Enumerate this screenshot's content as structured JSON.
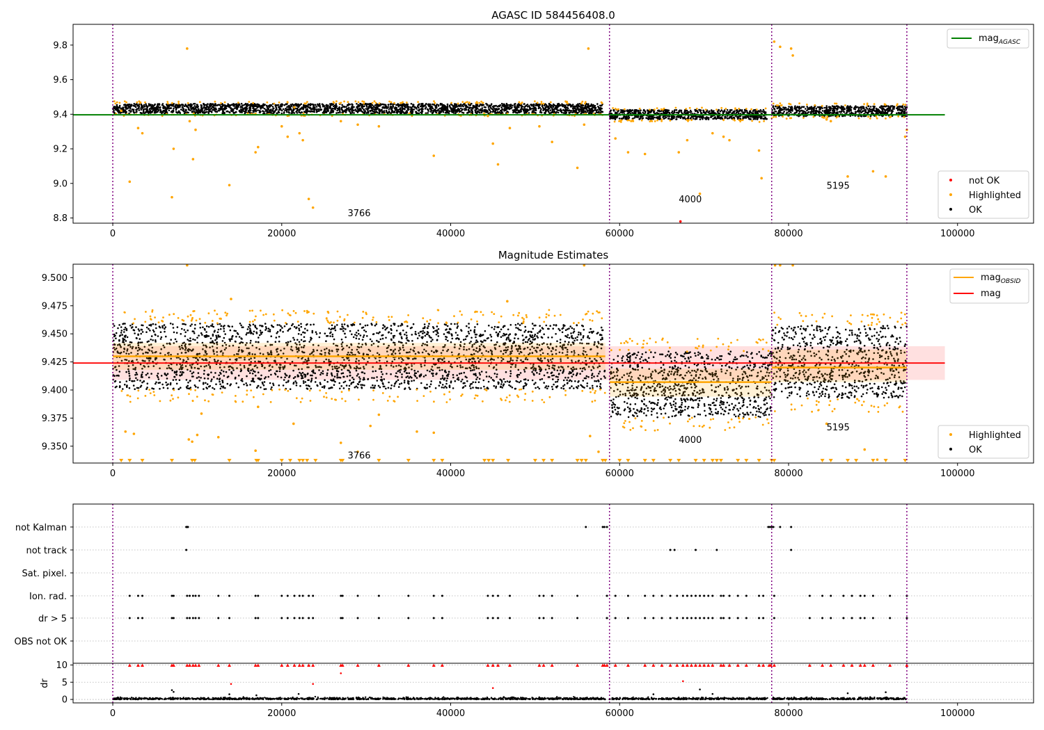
{
  "chart_data": [
    {
      "type": "scatter",
      "title": "AGASC ID 584456408.0",
      "xlim": [
        -4700,
        109000
      ],
      "ylim": [
        8.77,
        9.92
      ],
      "xticks": [
        0,
        20000,
        40000,
        60000,
        80000,
        100000
      ],
      "yticks": [
        8.8,
        9.0,
        9.2,
        9.4,
        9.6,
        9.8
      ],
      "ytick_labels": [
        "8.8",
        "9.0",
        "9.2",
        "9.4",
        "9.6",
        "9.8"
      ],
      "grid": false,
      "vlines": [
        0,
        58800,
        78000,
        94000
      ],
      "mag_agasc": 9.397,
      "mag_agasc_range": [
        0,
        98500
      ],
      "legend_lines": [
        {
          "label": "mag",
          "sub": "AGASC",
          "color": "#008000"
        }
      ],
      "legend_points": [
        {
          "label": "not OK",
          "color": "#ff0000"
        },
        {
          "label": "Highlighted",
          "color": "#ffa500"
        },
        {
          "label": "OK",
          "color": "#000000"
        }
      ],
      "annotations": [
        {
          "text": "3766",
          "x": 27800,
          "y": 8.81
        },
        {
          "text": "4000",
          "x": 67000,
          "y": 8.89
        },
        {
          "text": "5195",
          "x": 84500,
          "y": 8.97
        }
      ],
      "segments": [
        {
          "x0": 0,
          "x1": 58000,
          "center": 9.433,
          "spread": 0.028
        },
        {
          "x0": 58800,
          "x1": 77500,
          "center": 9.398,
          "spread": 0.028
        },
        {
          "x0": 78000,
          "x1": 94000,
          "center": 9.418,
          "spread": 0.03
        }
      ],
      "highlighted_points": [
        [
          1000,
          9.42
        ],
        [
          2000,
          9.01
        ],
        [
          3000,
          9.32
        ],
        [
          3500,
          9.29
        ],
        [
          7000,
          8.92
        ],
        [
          7200,
          9.2
        ],
        [
          8800,
          9.78
        ],
        [
          9100,
          9.36
        ],
        [
          9500,
          9.14
        ],
        [
          9800,
          9.31
        ],
        [
          13800,
          8.99
        ],
        [
          16900,
          9.18
        ],
        [
          17200,
          9.21
        ],
        [
          20000,
          9.33
        ],
        [
          20700,
          9.27
        ],
        [
          21500,
          9.44
        ],
        [
          22100,
          9.29
        ],
        [
          22500,
          9.25
        ],
        [
          23200,
          8.91
        ],
        [
          23700,
          8.86
        ],
        [
          27000,
          9.36
        ],
        [
          29000,
          9.34
        ],
        [
          31500,
          9.33
        ],
        [
          38000,
          9.16
        ],
        [
          44400,
          9.39
        ],
        [
          45000,
          9.23
        ],
        [
          45600,
          9.11
        ],
        [
          47000,
          9.32
        ],
        [
          50500,
          9.33
        ],
        [
          52000,
          9.24
        ],
        [
          55000,
          9.09
        ],
        [
          55800,
          9.34
        ],
        [
          56300,
          9.78
        ],
        [
          59500,
          9.26
        ],
        [
          61000,
          9.18
        ],
        [
          63000,
          9.17
        ],
        [
          67000,
          9.18
        ],
        [
          68000,
          9.25
        ],
        [
          69500,
          8.94
        ],
        [
          71000,
          9.29
        ],
        [
          72300,
          9.27
        ],
        [
          73000,
          9.25
        ],
        [
          76500,
          9.19
        ],
        [
          76800,
          9.03
        ],
        [
          78300,
          9.82
        ],
        [
          79000,
          9.79
        ],
        [
          80300,
          9.78
        ],
        [
          80500,
          9.74
        ],
        [
          84500,
          9.37
        ],
        [
          85000,
          9.36
        ],
        [
          87000,
          9.04
        ],
        [
          90000,
          9.07
        ],
        [
          91500,
          9.04
        ],
        [
          93800,
          9.27
        ],
        [
          94000,
          9.31
        ]
      ],
      "notok_points": [
        [
          67200,
          8.78
        ]
      ]
    },
    {
      "type": "scatter",
      "title": "Magnitude Estimates",
      "xlim": [
        -4700,
        109000
      ],
      "ylim": [
        9.335,
        9.512
      ],
      "xticks": [
        0,
        20000,
        40000,
        60000,
        80000,
        100000
      ],
      "yticks": [
        9.35,
        9.375,
        9.4,
        9.425,
        9.45,
        9.475,
        9.5
      ],
      "ytick_labels": [
        "9.350",
        "9.375",
        "9.400",
        "9.425",
        "9.450",
        "9.475",
        "9.500"
      ],
      "grid": false,
      "vlines": [
        0,
        58800,
        78000,
        94000
      ],
      "mag": 9.424,
      "mag_band": [
        9.409,
        9.439
      ],
      "mag_range": [
        0,
        98500
      ],
      "legend_lines": [
        {
          "label": "mag",
          "sub": "OBSID",
          "color": "#ffa500"
        },
        {
          "label": "mag",
          "sub": "",
          "color": "#ff0000"
        }
      ],
      "legend_points": [
        {
          "label": "Highlighted",
          "color": "#ffa500"
        },
        {
          "label": "OK",
          "color": "#000000"
        }
      ],
      "annotations": [
        {
          "text": "3766",
          "x": 27800,
          "y": 9.339
        },
        {
          "text": "4000",
          "x": 67000,
          "y": 9.353
        },
        {
          "text": "5195",
          "x": 84500,
          "y": 9.364
        }
      ],
      "obsid": [
        {
          "x0": 0,
          "x1": 58300,
          "mag": 9.43,
          "band": [
            9.418,
            9.442
          ],
          "spread": 0.045,
          "center": 9.43
        },
        {
          "x0": 58800,
          "x1": 78000,
          "mag": 9.407,
          "band": [
            9.394,
            9.419
          ],
          "spread": 0.045,
          "center": 9.405
        },
        {
          "x0": 78000,
          "x1": 94000,
          "mag": 9.42,
          "band": [
            9.407,
            9.436
          ],
          "spread": 0.05,
          "center": 9.425
        }
      ],
      "highlighted_points": [
        [
          1500,
          9.363
        ],
        [
          2500,
          9.361
        ],
        [
          8800,
          9.511
        ],
        [
          9000,
          9.356
        ],
        [
          9400,
          9.354
        ],
        [
          10000,
          9.36
        ],
        [
          10500,
          9.379
        ],
        [
          12500,
          9.358
        ],
        [
          14000,
          9.481
        ],
        [
          16900,
          9.346
        ],
        [
          17200,
          9.385
        ],
        [
          21400,
          9.37
        ],
        [
          27000,
          9.353
        ],
        [
          29000,
          9.345
        ],
        [
          30500,
          9.368
        ],
        [
          31500,
          9.378
        ],
        [
          36000,
          9.363
        ],
        [
          38000,
          9.362
        ],
        [
          46700,
          9.479
        ],
        [
          55800,
          9.511
        ],
        [
          56500,
          9.359
        ],
        [
          57500,
          9.345
        ],
        [
          78400,
          9.511
        ],
        [
          79000,
          9.511
        ],
        [
          80500,
          9.511
        ],
        [
          84500,
          9.37
        ],
        [
          89000,
          9.347
        ],
        [
          90500,
          9.338
        ]
      ],
      "floor_markers": [
        1000,
        2000,
        3500,
        7000,
        9400,
        9700,
        13800,
        17000,
        17200,
        20000,
        21000,
        22100,
        22500,
        23000,
        24000,
        27000,
        27200,
        31500,
        35000,
        38000,
        39000,
        44000,
        44500,
        45000,
        46800,
        50000,
        51000,
        52000,
        55000,
        55500,
        56000,
        58000,
        58300,
        60000,
        61000,
        63000,
        64000,
        66000,
        67000,
        69000,
        70000,
        71000,
        71500,
        72000,
        74000,
        75000,
        76500,
        78000,
        78300,
        84000,
        85000,
        87000,
        88000,
        90000,
        91500,
        93800
      ]
    },
    {
      "type": "scatter",
      "title": "",
      "xlim": [
        -4700,
        109000
      ],
      "xticks": [
        0,
        20000,
        40000,
        60000,
        80000,
        100000
      ],
      "vlines": [
        0,
        58800,
        78000,
        94000
      ],
      "flag_categories": [
        "not Kalman",
        "not track",
        "Sat. pixel.",
        "Ion. rad.",
        "dr > 5",
        "OBS not OK"
      ],
      "flags": {
        "not Kalman": [
          8700,
          8800,
          8900,
          56000,
          58000,
          58200,
          58500,
          77600,
          77800,
          78000,
          78200,
          79000,
          80300
        ],
        "not track": [
          8700,
          66000,
          66500,
          69000,
          71500,
          80300
        ],
        "Sat. pixel.": [],
        "Ion. rad.": [
          2000,
          3000,
          3500,
          7000,
          7200,
          8800,
          9100,
          9500,
          9800,
          10200,
          12500,
          13800,
          16900,
          17200,
          20000,
          20700,
          21500,
          22100,
          22500,
          23200,
          23700,
          27000,
          27200,
          29000,
          31500,
          35000,
          38000,
          39000,
          44400,
          45000,
          45600,
          47000,
          50500,
          51000,
          52000,
          55000,
          58500,
          59500,
          61000,
          63000,
          64000,
          65000,
          66000,
          66800,
          67500,
          68000,
          68500,
          69000,
          69500,
          70000,
          70500,
          71000,
          72000,
          72300,
          73000,
          74000,
          75000,
          76500,
          77000,
          78300,
          82500,
          84000,
          85000,
          86500,
          87500,
          88500,
          89000,
          90000,
          92000,
          94000
        ],
        "dr > 5": [
          2000,
          3000,
          3500,
          7000,
          7200,
          8800,
          9100,
          9500,
          9800,
          10200,
          12500,
          13800,
          16900,
          17200,
          20000,
          20700,
          21500,
          22100,
          22500,
          23200,
          23700,
          27000,
          27200,
          29000,
          31500,
          35000,
          38000,
          39000,
          44400,
          45000,
          45600,
          47000,
          50500,
          51000,
          52000,
          55000,
          58500,
          59500,
          61000,
          63000,
          64000,
          65000,
          66000,
          66800,
          67500,
          68000,
          68500,
          69000,
          69500,
          70000,
          70500,
          71000,
          72000,
          72300,
          73000,
          74000,
          75000,
          76500,
          77000,
          78300,
          82500,
          84000,
          85000,
          86500,
          87500,
          88500,
          89000,
          90000,
          92000,
          94000
        ],
        "OBS not OK": []
      }
    },
    {
      "type": "scatter",
      "title": "",
      "ylabel": "dr",
      "xlim": [
        -4700,
        109000
      ],
      "ylim": [
        -1,
        10.5
      ],
      "xticks": [
        0,
        20000,
        40000,
        60000,
        80000,
        100000
      ],
      "xtick_labels": [
        "0",
        "20000",
        "40000",
        "60000",
        "80000",
        "100000"
      ],
      "yticks": [
        0,
        5,
        10
      ],
      "ytick_labels": [
        "0",
        "5",
        "10"
      ],
      "vlines": [
        0,
        58800,
        78000,
        94000
      ],
      "red_points": [
        [
          27000,
          7.6
        ],
        [
          14000,
          4.5
        ],
        [
          23700,
          4.5
        ],
        [
          45000,
          3.3
        ],
        [
          67500,
          5.3
        ]
      ],
      "dr_outliers": [
        [
          7000,
          2.7
        ],
        [
          7200,
          2.2
        ],
        [
          13800,
          1.5
        ],
        [
          17000,
          1.2
        ],
        [
          22000,
          1.6
        ],
        [
          64000,
          1.5
        ],
        [
          69500,
          2.9
        ],
        [
          71000,
          1.6
        ],
        [
          87000,
          1.8
        ],
        [
          91500,
          2.1
        ]
      ]
    }
  ]
}
